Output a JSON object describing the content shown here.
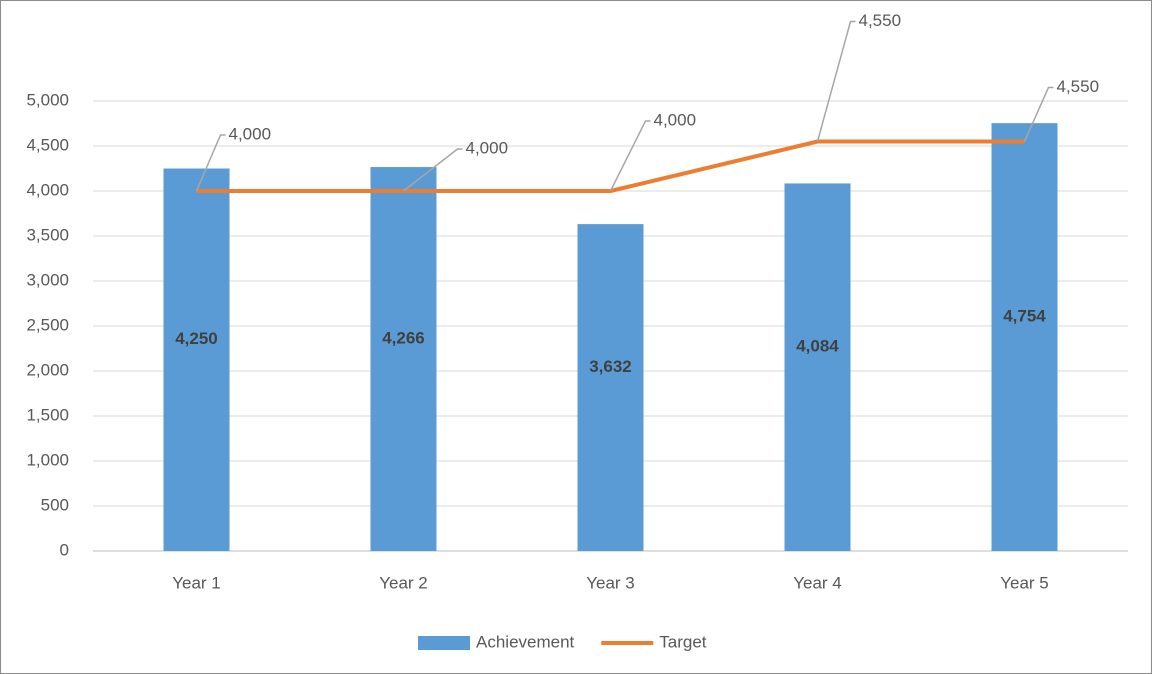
{
  "chart_data": {
    "type": "combo",
    "categories": [
      "Year 1",
      "Year 2",
      "Year 3",
      "Year 4",
      "Year 5"
    ],
    "series": [
      {
        "name": "Achievement",
        "type": "bar",
        "color": "#5b9bd5",
        "values": [
          4250,
          4266,
          3632,
          4084,
          4754
        ],
        "value_labels": [
          "4,250",
          "4,266",
          "3,632",
          "4,084",
          "4,754"
        ]
      },
      {
        "name": "Target",
        "type": "line",
        "color": "#ed7d31",
        "values": [
          4000,
          4000,
          4000,
          4550,
          4550
        ],
        "value_labels": [
          "4,000",
          "4,000",
          "4,000",
          "4,550",
          "4,550"
        ]
      }
    ],
    "ylim": [
      0,
      5000
    ],
    "yticks": [
      {
        "value": 0,
        "label": "0"
      },
      {
        "value": 500,
        "label": "500"
      },
      {
        "value": 1000,
        "label": "1,000"
      },
      {
        "value": 1500,
        "label": "1,500"
      },
      {
        "value": 2000,
        "label": "2,000"
      },
      {
        "value": 2500,
        "label": "2,500"
      },
      {
        "value": 3000,
        "label": "3,000"
      },
      {
        "value": 3500,
        "label": "3,500"
      },
      {
        "value": 4000,
        "label": "4,000"
      },
      {
        "value": 4500,
        "label": "4,500"
      },
      {
        "value": 5000,
        "label": "5,000"
      }
    ],
    "grid": true,
    "legend": "bottom"
  }
}
